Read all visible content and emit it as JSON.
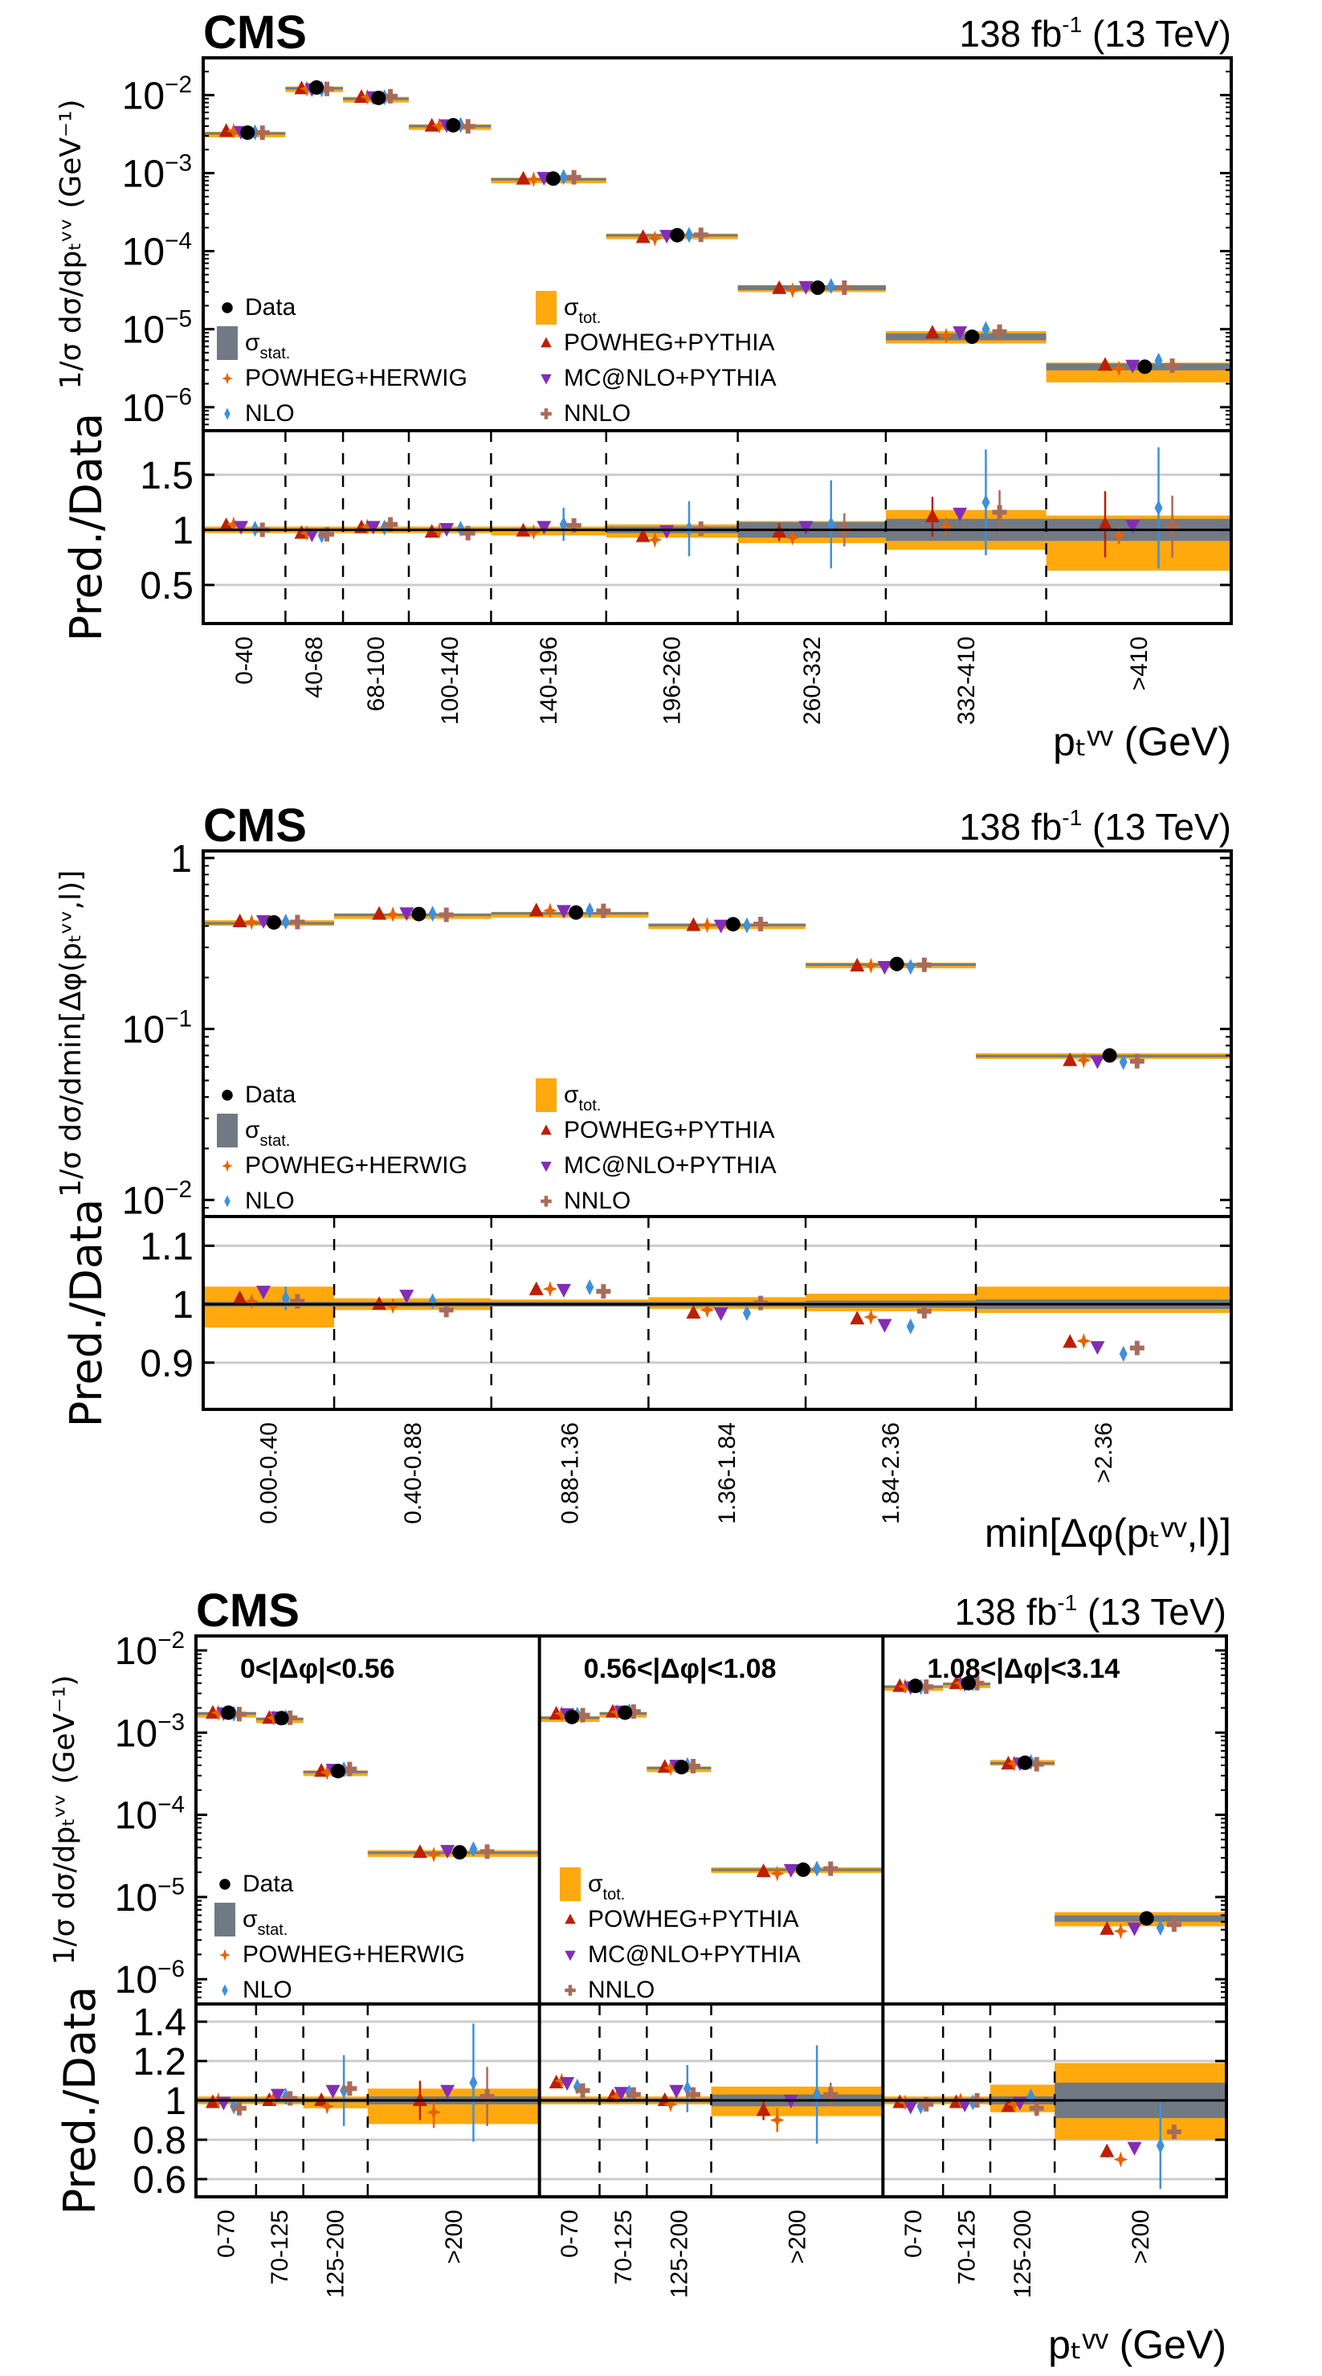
{
  "figure": {
    "experiment": "CMS",
    "lumi_label": "138 fb",
    "lumi_sup": "-1",
    "energy_label": "(13 TeV)"
  },
  "legend": {
    "data": "Data",
    "stat": "σ",
    "stat_sub": "stat.",
    "tot": "σ",
    "tot_sub": "tot.",
    "powheg_herwig": "POWHEG+HERWIG",
    "nlo": "NLO",
    "powheg_pythia": "POWHEG+PYTHIA",
    "mcatnlo_pythia": "MC@NLO+PYTHIA",
    "nnlo": "NNLO"
  },
  "colors": {
    "data": "#000000",
    "stat": "#717a84",
    "tot": "#ffa90e",
    "powheg_pythia": "#bd1f01",
    "powheg_herwig": "#e76300",
    "mcatnlo_pythia": "#832db6",
    "nlo": "#3f90da",
    "nnlo": "#a96b59",
    "grid": "#cccccc"
  },
  "chart_data": [
    {
      "type": "scatter",
      "title": "CMS 138 fb-1 (13 TeV)",
      "ylabel": "1/σ dσ/dp_T^νν (GeV^-1)",
      "ratio_ylabel": "Pred./Data",
      "xlabel": "p_T^νν (GeV)",
      "yscale": "log",
      "ylim": [
        5e-07,
        0.03
      ],
      "yticks": [
        "10^-2",
        "10^-3",
        "10^-4",
        "10^-5",
        "10^-6"
      ],
      "ratio_ylim": [
        0.15,
        1.9
      ],
      "ratio_yticks": [
        "1.5",
        "1",
        "0.5"
      ],
      "categories": [
        "0-40",
        "40-68",
        "68-100",
        "100-140",
        "140-196",
        "196-260",
        "260-332",
        "332-410",
        ">410"
      ],
      "bin_widths": [
        40,
        28,
        32,
        40,
        56,
        64,
        72,
        78,
        90
      ],
      "data": [
        0.0033,
        0.0125,
        0.0092,
        0.0041,
        0.00085,
        0.00016,
        3.4e-05,
        8e-06,
        3.3e-06
      ],
      "stat_rel": [
        0.01,
        0.01,
        0.01,
        0.01,
        0.012,
        0.03,
        0.07,
        0.1,
        0.1
      ],
      "tot_up_rel": [
        0.03,
        0.03,
        0.03,
        0.03,
        0.03,
        0.05,
        0.08,
        0.18,
        0.13
      ],
      "tot_dn_rel": [
        0.03,
        0.03,
        0.03,
        0.03,
        0.05,
        0.07,
        0.12,
        0.18,
        0.37
      ],
      "ratios": {
        "powheg_pythia": [
          1.04,
          0.97,
          1.02,
          0.98,
          0.99,
          0.94,
          0.98,
          1.12,
          1.05
        ],
        "powheg_herwig": [
          1.05,
          0.97,
          1.03,
          0.99,
          0.98,
          0.91,
          0.93,
          1.03,
          0.95
        ],
        "mcatnlo_pythia": [
          1.03,
          0.96,
          1.03,
          1.01,
          1.03,
          0.99,
          1.03,
          1.15,
          1.04
        ],
        "nlo": [
          1.01,
          0.95,
          1.02,
          1.01,
          1.05,
          1.01,
          1.05,
          1.25,
          1.2
        ],
        "nnlo": [
          1.0,
          0.96,
          1.05,
          0.97,
          1.04,
          1.01,
          1.0,
          1.16,
          1.03
        ]
      },
      "ratio_err": {
        "powheg_pythia": [
          0.01,
          0.01,
          0.01,
          0.01,
          0.01,
          0.02,
          0.08,
          0.18,
          0.3
        ],
        "powheg_herwig": [
          0.01,
          0.01,
          0.01,
          0.01,
          0.03,
          0.03,
          0.05,
          0.08,
          0.08
        ],
        "mcatnlo_pythia": [
          0.01,
          0.01,
          0.01,
          0.01,
          0.01,
          0.01,
          0.02,
          0.03,
          0.05
        ],
        "nlo": [
          0.02,
          0.02,
          0.02,
          0.02,
          0.15,
          0.25,
          0.4,
          0.48,
          0.55
        ],
        "nnlo": [
          0.01,
          0.01,
          0.01,
          0.01,
          0.02,
          0.03,
          0.15,
          0.2,
          0.28
        ]
      }
    },
    {
      "type": "scatter",
      "title": "CMS 138 fb-1 (13 TeV)",
      "ylabel": "1/σ dσ/dmin[Δφ(p_T^νν,l)]",
      "ratio_ylabel": "Pred./Data",
      "xlabel": "min[Δφ(p_T^νν,l)]",
      "yscale": "log",
      "ylim": [
        0.008,
        1.1
      ],
      "yticks": [
        "1",
        "10^-1",
        "10^-2"
      ],
      "ratio_ylim": [
        0.82,
        1.15
      ],
      "ratio_yticks": [
        "1.1",
        "1",
        "0.9"
      ],
      "categories": [
        "0.00-0.40",
        "0.40-0.88",
        "0.88-1.36",
        "1.36-1.84",
        "1.84-2.36",
        ">2.36"
      ],
      "bin_widths": [
        0.4,
        0.48,
        0.48,
        0.48,
        0.52,
        0.78
      ],
      "data": [
        0.42,
        0.47,
        0.48,
        0.41,
        0.24,
        0.07
      ],
      "stat_rel": [
        0.004,
        0.004,
        0.004,
        0.004,
        0.006,
        0.008
      ],
      "tot_up_rel": [
        0.03,
        0.01,
        0.008,
        0.012,
        0.018,
        0.03
      ],
      "tot_dn_rel": [
        0.04,
        0.01,
        0.004,
        0.008,
        0.012,
        0.015
      ],
      "ratios": {
        "powheg_pythia": [
          1.01,
          1.0,
          1.025,
          0.985,
          0.975,
          0.935
        ],
        "powheg_herwig": [
          1.005,
          0.997,
          1.026,
          0.99,
          0.978,
          0.937
        ],
        "mcatnlo_pythia": [
          1.022,
          1.015,
          1.025,
          0.985,
          0.965,
          0.927
        ],
        "nlo": [
          1.01,
          1.005,
          1.029,
          0.985,
          0.962,
          0.915
        ],
        "nnlo": [
          1.005,
          0.99,
          1.022,
          1.002,
          0.988,
          0.925
        ]
      },
      "ratio_err": {
        "powheg_pythia": [
          0.002,
          0.002,
          0.002,
          0.002,
          0.002,
          0.002
        ],
        "powheg_herwig": [
          0.004,
          0.004,
          0.004,
          0.003,
          0.004,
          0.005
        ],
        "mcatnlo_pythia": [
          0.002,
          0.002,
          0.002,
          0.002,
          0.002,
          0.002
        ],
        "nlo": [
          0.02,
          0.008,
          0.006,
          0.008,
          0.008,
          0.008
        ],
        "nnlo": [
          0.005,
          0.008,
          0.005,
          0.008,
          0.007,
          0.004
        ]
      }
    },
    {
      "type": "scatter",
      "title": "CMS 138 fb-1 (13 TeV)",
      "ylabel": "1/σ dσ/dp_T^νν (GeV^-1)",
      "ratio_ylabel": "Pred./Data",
      "xlabel": "p_T^νν (GeV)",
      "yscale": "log",
      "ylim": [
        5e-07,
        0.015
      ],
      "yticks": [
        "10^-2",
        "10^-3",
        "10^-4",
        "10^-5",
        "10^-6"
      ],
      "ratio_ylim": [
        0.51,
        1.49
      ],
      "ratio_yticks": [
        "1.4",
        "1.2",
        "1",
        "0.8",
        "0.6"
      ],
      "regions": [
        "0<|Δφ|<0.56",
        "0.56<|Δφ|<1.08",
        "1.08<|Δφ|<3.14"
      ],
      "categories": [
        "0-70",
        "70-125",
        "125-200",
        ">200"
      ],
      "bin_widths": [
        70,
        55,
        75,
        200
      ],
      "data": [
        [
          0.00175,
          0.0015,
          0.00034,
          3.5e-05
        ],
        [
          0.00155,
          0.00175,
          0.00038,
          2.15e-05
        ],
        [
          0.0037,
          0.004,
          0.00043,
          5.5e-06
        ]
      ],
      "stat_rel": [
        [
          0.01,
          0.01,
          0.01,
          0.02
        ],
        [
          0.01,
          0.01,
          0.01,
          0.03
        ],
        [
          0.01,
          0.01,
          0.02,
          0.09
        ]
      ],
      "tot_up_rel": [
        [
          0.02,
          0.02,
          0.02,
          0.06
        ],
        [
          0.02,
          0.02,
          0.02,
          0.07
        ],
        [
          0.02,
          0.02,
          0.08,
          0.19
        ]
      ],
      "tot_dn_rel": [
        [
          0.02,
          0.02,
          0.04,
          0.12
        ],
        [
          0.02,
          0.02,
          0.02,
          0.08
        ],
        [
          0.02,
          0.02,
          0.06,
          0.2
        ]
      ],
      "ratios": {
        "powheg_pythia": [
          [
            0.99,
            1.0,
            1.0,
            1.0
          ],
          [
            1.09,
            1.02,
            1.0,
            0.95
          ],
          [
            0.99,
            0.99,
            0.97,
            0.74
          ]
        ],
        "powheg_herwig": [
          [
            1.0,
            1.01,
            0.97,
            0.94
          ],
          [
            1.1,
            1.02,
            0.98,
            0.9
          ],
          [
            0.99,
            1.0,
            0.98,
            0.7
          ]
        ],
        "mcatnlo_pythia": [
          [
            0.99,
            1.03,
            1.05,
            1.05
          ],
          [
            1.09,
            1.04,
            1.05,
            1.0
          ],
          [
            0.97,
            0.98,
            0.99,
            0.76
          ]
        ],
        "nlo": [
          [
            0.97,
            1.02,
            1.05,
            1.09
          ],
          [
            1.07,
            1.04,
            1.06,
            1.03
          ],
          [
            0.97,
            0.99,
            1.02,
            0.77
          ]
        ],
        "nnlo": [
          [
            0.96,
            1.01,
            1.06,
            1.02
          ],
          [
            1.05,
            1.03,
            1.03,
            1.03
          ],
          [
            0.98,
            1.0,
            0.96,
            0.84
          ]
        ]
      },
      "ratio_err": {
        "powheg_pythia": [
          [
            0.01,
            0.01,
            0.03,
            0.1
          ],
          [
            0.01,
            0.01,
            0.02,
            0.05
          ],
          [
            0.01,
            0.01,
            0.02,
            0.03
          ]
        ],
        "powheg_herwig": [
          [
            0.01,
            0.01,
            0.03,
            0.08
          ],
          [
            0.01,
            0.01,
            0.02,
            0.06
          ],
          [
            0.01,
            0.01,
            0.02,
            0.02
          ]
        ],
        "mcatnlo_pythia": [
          [
            0.01,
            0.01,
            0.01,
            0.02
          ],
          [
            0.01,
            0.01,
            0.01,
            0.02
          ],
          [
            0.01,
            0.01,
            0.01,
            0.02
          ]
        ],
        "nlo": [
          [
            0.02,
            0.04,
            0.18,
            0.3
          ],
          [
            0.02,
            0.02,
            0.12,
            0.25
          ],
          [
            0.01,
            0.02,
            0.03,
            0.22
          ]
        ],
        "nnlo": [
          [
            0.01,
            0.02,
            0.03,
            0.15
          ],
          [
            0.01,
            0.01,
            0.03,
            0.06
          ],
          [
            0.01,
            0.01,
            0.04,
            0.03
          ]
        ]
      }
    }
  ]
}
